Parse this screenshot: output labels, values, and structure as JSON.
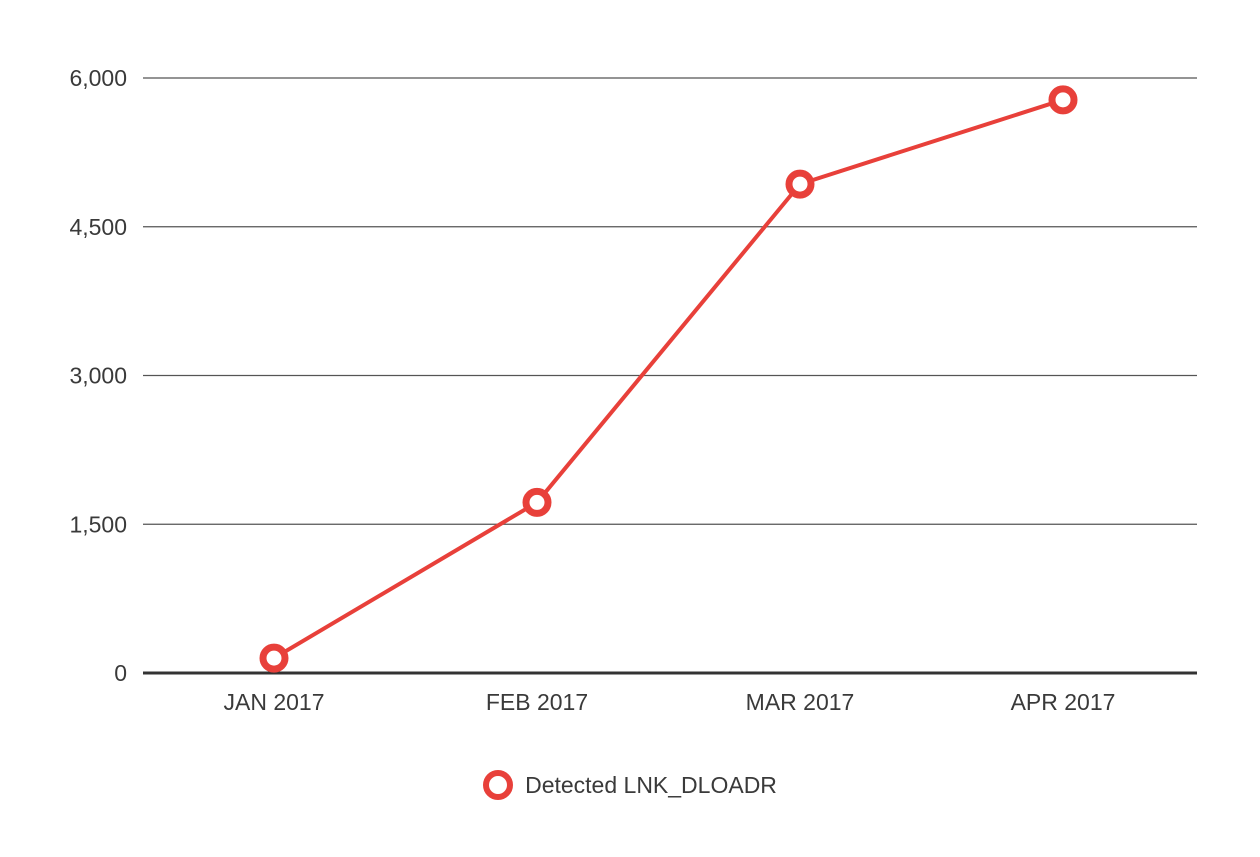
{
  "chart_data": {
    "type": "line",
    "title": "",
    "xlabel": "",
    "ylabel": "",
    "categories": [
      "JAN 2017",
      "FEB 2017",
      "MAR 2017",
      "APR 2017"
    ],
    "series": [
      {
        "name": "Detected LNK_DLOADR",
        "values": [
          150,
          1720,
          4930,
          5780
        ],
        "color": "#e8403a"
      }
    ],
    "ylim": [
      0,
      6000
    ],
    "yticks": [
      0,
      1500,
      3000,
      4500,
      6000
    ],
    "ytick_labels": [
      "0",
      "1,500",
      "3,000",
      "4,500",
      "6,000"
    ],
    "grid": true,
    "legend_position": "bottom-center",
    "colors": {
      "series": "#e8403a",
      "grid": "#555555",
      "axis": "#333333",
      "text": "#3a3a3a"
    }
  }
}
